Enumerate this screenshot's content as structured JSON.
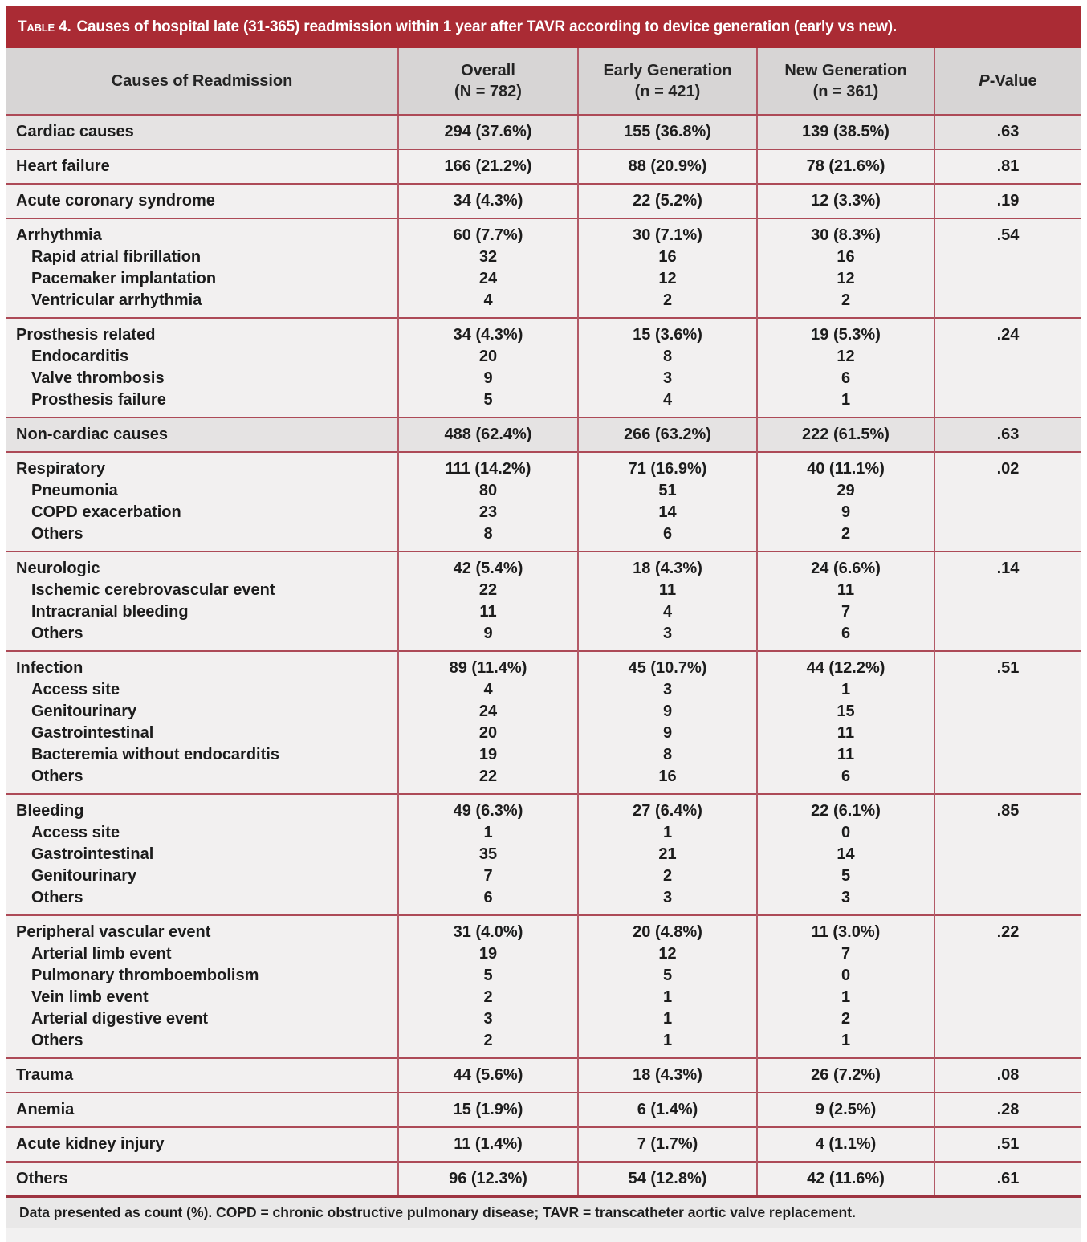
{
  "colors": {
    "title_bar": "#aa2b34",
    "title_text": "#ffffff",
    "border_red": "#ad4a57",
    "divider_red": "#b35a67",
    "bottom_border": "#9e3441",
    "header_bg": "#d7d5d5",
    "section_bg": "#e5e3e3",
    "row_bg": "#f2f0f0",
    "footnote_bg": "#e9e8e8",
    "text_dark": "#1c1c1c"
  },
  "table": {
    "title": {
      "prefix": "Table 4.",
      "text": "Causes of hospital late (31-365) readmission within 1 year after TAVR according to device generation (early vs new)."
    },
    "columns": {
      "cause": "Causes of Readmission",
      "overall_line1": "Overall",
      "overall_line2": "(N = 782)",
      "early_line1": "Early Generation",
      "early_line2": "(n = 421)",
      "new_line1": "New Generation",
      "new_line2": "(n = 361)",
      "pvalue_italic": "P",
      "pvalue_rest": "-Value"
    },
    "rows": [
      {
        "label": "Cardiac causes",
        "highlight": true,
        "overall": "294 (37.6%)",
        "early": "155 (36.8%)",
        "new": "139 (38.5%)",
        "p": ".63",
        "subs": []
      },
      {
        "label": "Heart failure",
        "highlight": false,
        "overall": "166 (21.2%)",
        "early": "88 (20.9%)",
        "new": "78 (21.6%)",
        "p": ".81",
        "subs": []
      },
      {
        "label": "Acute coronary syndrome",
        "highlight": false,
        "overall": "34 (4.3%)",
        "early": "22 (5.2%)",
        "new": "12 (3.3%)",
        "p": ".19",
        "subs": []
      },
      {
        "label": "Arrhythmia",
        "highlight": false,
        "overall": "60 (7.7%)",
        "early": "30 (7.1%)",
        "new": "30 (8.3%)",
        "p": ".54",
        "subs": [
          {
            "label": "Rapid atrial fibrillation",
            "overall": "32",
            "early": "16",
            "new": "16"
          },
          {
            "label": "Pacemaker implantation",
            "overall": "24",
            "early": "12",
            "new": "12"
          },
          {
            "label": "Ventricular arrhythmia",
            "overall": "4",
            "early": "2",
            "new": "2"
          }
        ]
      },
      {
        "label": "Prosthesis related",
        "highlight": false,
        "overall": "34 (4.3%)",
        "early": "15 (3.6%)",
        "new": "19 (5.3%)",
        "p": ".24",
        "subs": [
          {
            "label": "Endocarditis",
            "overall": "20",
            "early": "8",
            "new": "12"
          },
          {
            "label": "Valve thrombosis",
            "overall": "9",
            "early": "3",
            "new": "6"
          },
          {
            "label": "Prosthesis failure",
            "overall": "5",
            "early": "4",
            "new": "1"
          }
        ]
      },
      {
        "label": "Non-cardiac causes",
        "highlight": true,
        "overall": "488 (62.4%)",
        "early": "266 (63.2%)",
        "new": "222 (61.5%)",
        "p": ".63",
        "subs": []
      },
      {
        "label": "Respiratory",
        "highlight": false,
        "overall": "111 (14.2%)",
        "early": "71 (16.9%)",
        "new": "40 (11.1%)",
        "p": ".02",
        "subs": [
          {
            "label": "Pneumonia",
            "overall": "80",
            "early": "51",
            "new": "29"
          },
          {
            "label": "COPD exacerbation",
            "overall": "23",
            "early": "14",
            "new": "9"
          },
          {
            "label": "Others",
            "overall": "8",
            "early": "6",
            "new": "2"
          }
        ]
      },
      {
        "label": "Neurologic",
        "highlight": false,
        "overall": "42 (5.4%)",
        "early": "18 (4.3%)",
        "new": "24 (6.6%)",
        "p": ".14",
        "subs": [
          {
            "label": "Ischemic cerebrovascular event",
            "overall": "22",
            "early": "11",
            "new": "11"
          },
          {
            "label": "Intracranial bleeding",
            "overall": "11",
            "early": "4",
            "new": "7"
          },
          {
            "label": "Others",
            "overall": "9",
            "early": "3",
            "new": "6"
          }
        ]
      },
      {
        "label": "Infection",
        "highlight": false,
        "overall": "89 (11.4%)",
        "early": "45 (10.7%)",
        "new": "44 (12.2%)",
        "p": ".51",
        "subs": [
          {
            "label": "Access site",
            "overall": "4",
            "early": "3",
            "new": "1"
          },
          {
            "label": "Genitourinary",
            "overall": "24",
            "early": "9",
            "new": "15"
          },
          {
            "label": "Gastrointestinal",
            "overall": "20",
            "early": "9",
            "new": "11"
          },
          {
            "label": "Bacteremia without endocarditis",
            "overall": "19",
            "early": "8",
            "new": "11"
          },
          {
            "label": "Others",
            "overall": "22",
            "early": "16",
            "new": "6"
          }
        ]
      },
      {
        "label": "Bleeding",
        "highlight": false,
        "overall": "49 (6.3%)",
        "early": "27 (6.4%)",
        "new": "22 (6.1%)",
        "p": ".85",
        "subs": [
          {
            "label": "Access site",
            "overall": "1",
            "early": "1",
            "new": "0"
          },
          {
            "label": "Gastrointestinal",
            "overall": "35",
            "early": "21",
            "new": "14"
          },
          {
            "label": "Genitourinary",
            "overall": "7",
            "early": "2",
            "new": "5"
          },
          {
            "label": "Others",
            "overall": "6",
            "early": "3",
            "new": "3"
          }
        ]
      },
      {
        "label": "Peripheral vascular event",
        "highlight": false,
        "overall": "31 (4.0%)",
        "early": "20 (4.8%)",
        "new": "11 (3.0%)",
        "p": ".22",
        "subs": [
          {
            "label": "Arterial limb event",
            "overall": "19",
            "early": "12",
            "new": "7"
          },
          {
            "label": "Pulmonary thromboembolism",
            "overall": "5",
            "early": "5",
            "new": "0"
          },
          {
            "label": "Vein limb event",
            "overall": "2",
            "early": "1",
            "new": "1"
          },
          {
            "label": "Arterial digestive event",
            "overall": "3",
            "early": "1",
            "new": "2"
          },
          {
            "label": "Others",
            "overall": "2",
            "early": "1",
            "new": "1"
          }
        ]
      },
      {
        "label": "Trauma",
        "highlight": false,
        "overall": "44 (5.6%)",
        "early": "18 (4.3%)",
        "new": "26 (7.2%)",
        "p": ".08",
        "subs": []
      },
      {
        "label": "Anemia",
        "highlight": false,
        "overall": "15 (1.9%)",
        "early": "6 (1.4%)",
        "new": "9 (2.5%)",
        "p": ".28",
        "subs": []
      },
      {
        "label": "Acute kidney injury",
        "highlight": false,
        "overall": "11 (1.4%)",
        "early": "7 (1.7%)",
        "new": "4 (1.1%)",
        "p": ".51",
        "subs": []
      },
      {
        "label": "Others",
        "highlight": false,
        "overall": "96 (12.3%)",
        "early": "54 (12.8%)",
        "new": "42 (11.6%)",
        "p": ".61",
        "subs": []
      }
    ],
    "footnote": "Data presented as count (%). COPD = chronic obstructive pulmonary disease; TAVR = transcatheter aortic valve replacement."
  }
}
